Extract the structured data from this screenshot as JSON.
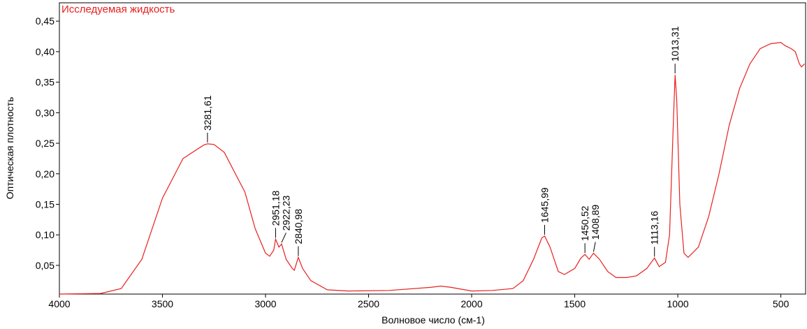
{
  "chart_data": {
    "type": "line",
    "title": "Исследуемая жидкость",
    "xlabel": "Волновое число (см-1)",
    "ylabel": "Оптическая плотность",
    "xlim": [
      4000,
      380
    ],
    "ylim": [
      0.003,
      0.48
    ],
    "xticks": [
      4000,
      3500,
      3000,
      2500,
      2000,
      1500,
      1000,
      500
    ],
    "yticks": [
      {
        "value": 0.05,
        "label": "0,05"
      },
      {
        "value": 0.1,
        "label": "0,10"
      },
      {
        "value": 0.15,
        "label": "0,15"
      },
      {
        "value": 0.2,
        "label": "0,20"
      },
      {
        "value": 0.25,
        "label": "0,25"
      },
      {
        "value": 0.3,
        "label": "0,30"
      },
      {
        "value": 0.35,
        "label": "0,35"
      },
      {
        "value": 0.4,
        "label": "0,40"
      },
      {
        "value": 0.45,
        "label": "0,45"
      }
    ],
    "series": [
      {
        "color": "#e8201f",
        "x": [
          4000,
          3800,
          3700,
          3600,
          3500,
          3400,
          3300,
          3281.61,
          3250,
          3200,
          3100,
          3050,
          3000,
          2980,
          2960,
          2951.18,
          2935,
          2922.23,
          2900,
          2870,
          2860,
          2840.98,
          2820,
          2780,
          2700,
          2600,
          2400,
          2200,
          2150,
          2100,
          2000,
          1900,
          1800,
          1750,
          1700,
          1660,
          1645.99,
          1620,
          1580,
          1550,
          1500,
          1470,
          1450.52,
          1430,
          1408.89,
          1380,
          1340,
          1300,
          1250,
          1200,
          1150,
          1113.16,
          1090,
          1060,
          1040,
          1020,
          1013.31,
          1005,
          990,
          970,
          950,
          900,
          850,
          800,
          750,
          700,
          650,
          600,
          550,
          500,
          480,
          450,
          430,
          410,
          400,
          385
        ],
        "values": [
          0.003,
          0.004,
          0.012,
          0.06,
          0.16,
          0.225,
          0.247,
          0.249,
          0.248,
          0.235,
          0.17,
          0.11,
          0.07,
          0.065,
          0.075,
          0.093,
          0.08,
          0.085,
          0.06,
          0.045,
          0.042,
          0.063,
          0.045,
          0.025,
          0.01,
          0.008,
          0.009,
          0.014,
          0.016,
          0.014,
          0.008,
          0.009,
          0.012,
          0.025,
          0.06,
          0.095,
          0.098,
          0.08,
          0.04,
          0.035,
          0.045,
          0.062,
          0.068,
          0.06,
          0.07,
          0.06,
          0.04,
          0.03,
          0.03,
          0.033,
          0.045,
          0.062,
          0.048,
          0.055,
          0.1,
          0.3,
          0.362,
          0.32,
          0.15,
          0.07,
          0.063,
          0.08,
          0.13,
          0.2,
          0.28,
          0.34,
          0.38,
          0.405,
          0.413,
          0.415,
          0.41,
          0.405,
          0.4,
          0.38,
          0.375,
          0.38
        ]
      }
    ],
    "annotations": [
      {
        "label": "3281,61",
        "x": 3281.61,
        "y": 0.249
      },
      {
        "label": "2951,18",
        "x": 2951.18,
        "y": 0.093
      },
      {
        "label": "2922,23",
        "x": 2922.23,
        "y": 0.085
      },
      {
        "label": "2840,98",
        "x": 2840.98,
        "y": 0.063
      },
      {
        "label": "1645,99",
        "x": 1645.99,
        "y": 0.098
      },
      {
        "label": "1450,52",
        "x": 1450.52,
        "y": 0.068
      },
      {
        "label": "1408,89",
        "x": 1408.89,
        "y": 0.07
      },
      {
        "label": "1113,16",
        "x": 1113.16,
        "y": 0.062
      },
      {
        "label": "1013,31",
        "x": 1013.31,
        "y": 0.362
      }
    ]
  }
}
